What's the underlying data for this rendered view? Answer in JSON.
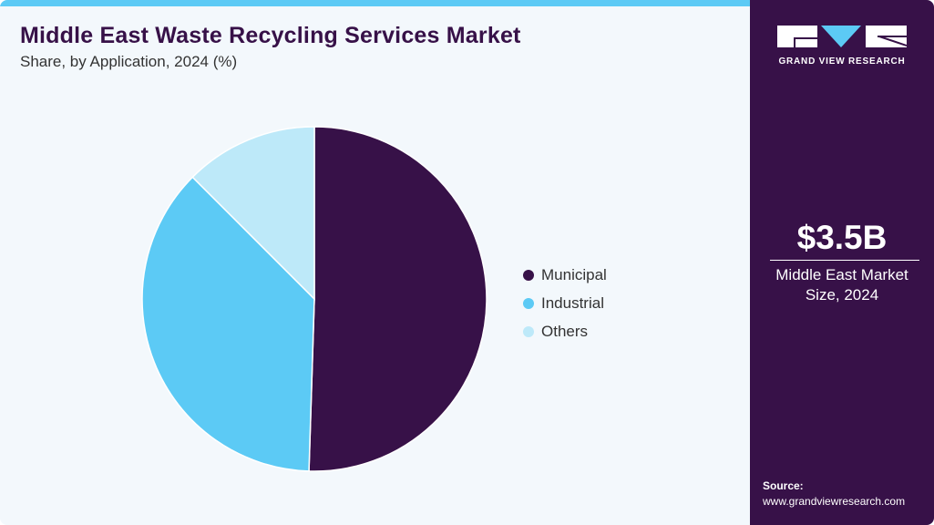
{
  "header": {
    "title": "Middle East Waste Recycling Services Market",
    "subtitle": "Share, by Application, 2024 (%)"
  },
  "legend": [
    {
      "label": "Municipal",
      "color": "#371148"
    },
    {
      "label": "Industrial",
      "color": "#5ccaf5"
    },
    {
      "label": "Others",
      "color": "#bde9f9"
    }
  ],
  "sidebar": {
    "brand": "GRAND VIEW RESEARCH",
    "market_size": "$3.5B",
    "market_size_label_line1": "Middle East Market",
    "market_size_label_line2": "Size, 2024",
    "source_heading": "Source:",
    "source_url": "www.grandviewresearch.com"
  },
  "colors": {
    "accent": "#5ccaf5",
    "brand_dark": "#371148",
    "background": "#f3f8fc"
  },
  "chart_data": {
    "type": "pie",
    "title": "Middle East Waste Recycling Services Market",
    "subtitle": "Share, by Application, 2024 (%)",
    "categories": [
      "Municipal",
      "Industrial",
      "Others"
    ],
    "values": [
      50.5,
      37.0,
      12.5
    ],
    "colors": [
      "#371148",
      "#5ccaf5",
      "#bde9f9"
    ],
    "start_angle": "12 o'clock, clockwise",
    "legend_position": "right"
  }
}
